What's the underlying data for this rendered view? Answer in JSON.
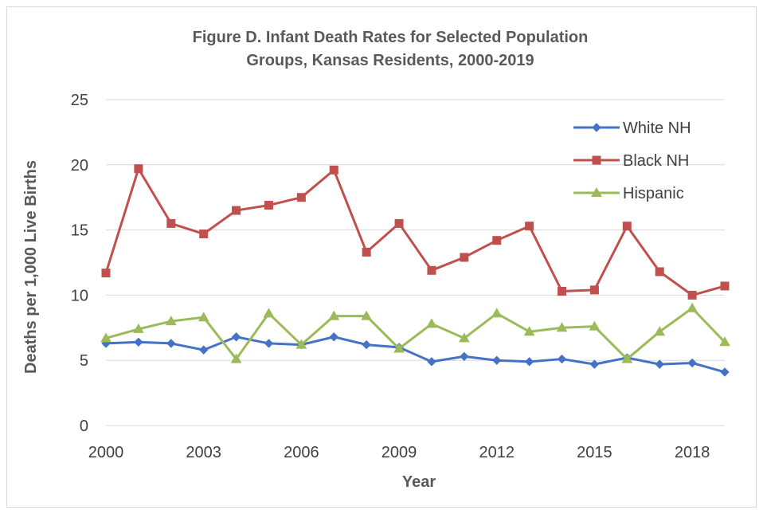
{
  "chart_data": {
    "type": "line",
    "title": "Figure D. Infant Death Rates for Selected Population Groups, Kansas Residents, 2000-2019",
    "title_lines": [
      "Figure D. Infant Death Rates for Selected Population",
      "Groups, Kansas Residents, 2000-2019"
    ],
    "xlabel": "Year",
    "ylabel": "Deaths per 1,000 Live Births",
    "x": [
      2000,
      2001,
      2002,
      2003,
      2004,
      2005,
      2006,
      2007,
      2008,
      2009,
      2010,
      2011,
      2012,
      2013,
      2014,
      2015,
      2016,
      2017,
      2018,
      2019
    ],
    "x_tick_labels": [
      "2000",
      "2003",
      "2006",
      "2009",
      "2012",
      "2015",
      "2018"
    ],
    "x_ticks": [
      2000,
      2003,
      2006,
      2009,
      2012,
      2015,
      2018
    ],
    "y_tick_labels": [
      "0",
      "5",
      "10",
      "15",
      "20",
      "25"
    ],
    "y_ticks": [
      0,
      5,
      10,
      15,
      20,
      25
    ],
    "xlim": [
      2000,
      2019
    ],
    "ylim": [
      0,
      25
    ],
    "grid": "horizontal",
    "legend_position": "top-right",
    "series": [
      {
        "name": "White NH",
        "color": "#4472c4",
        "marker": "diamond",
        "values": [
          6.3,
          6.4,
          6.3,
          5.8,
          6.8,
          6.3,
          6.2,
          6.8,
          6.2,
          6.0,
          4.9,
          5.3,
          5.0,
          4.9,
          5.1,
          4.7,
          5.2,
          4.7,
          4.8,
          4.1
        ]
      },
      {
        "name": "Black NH",
        "color": "#c0504d",
        "marker": "square",
        "values": [
          11.7,
          19.7,
          15.5,
          14.7,
          16.5,
          16.9,
          17.5,
          19.6,
          13.3,
          15.5,
          11.9,
          12.9,
          14.2,
          15.3,
          10.3,
          10.4,
          15.3,
          11.8,
          10.0,
          10.7
        ]
      },
      {
        "name": "Hispanic",
        "color": "#9bbb59",
        "marker": "triangle",
        "values": [
          6.7,
          7.4,
          8.0,
          8.3,
          5.1,
          8.6,
          6.2,
          8.4,
          8.4,
          5.9,
          7.8,
          6.7,
          8.6,
          7.2,
          7.5,
          7.6,
          5.1,
          7.2,
          9.0,
          6.4
        ]
      }
    ]
  },
  "colors": {
    "grid": "#d9d9d9",
    "axis": "#d9d9d9",
    "title": "#595959",
    "text": "#404040"
  }
}
